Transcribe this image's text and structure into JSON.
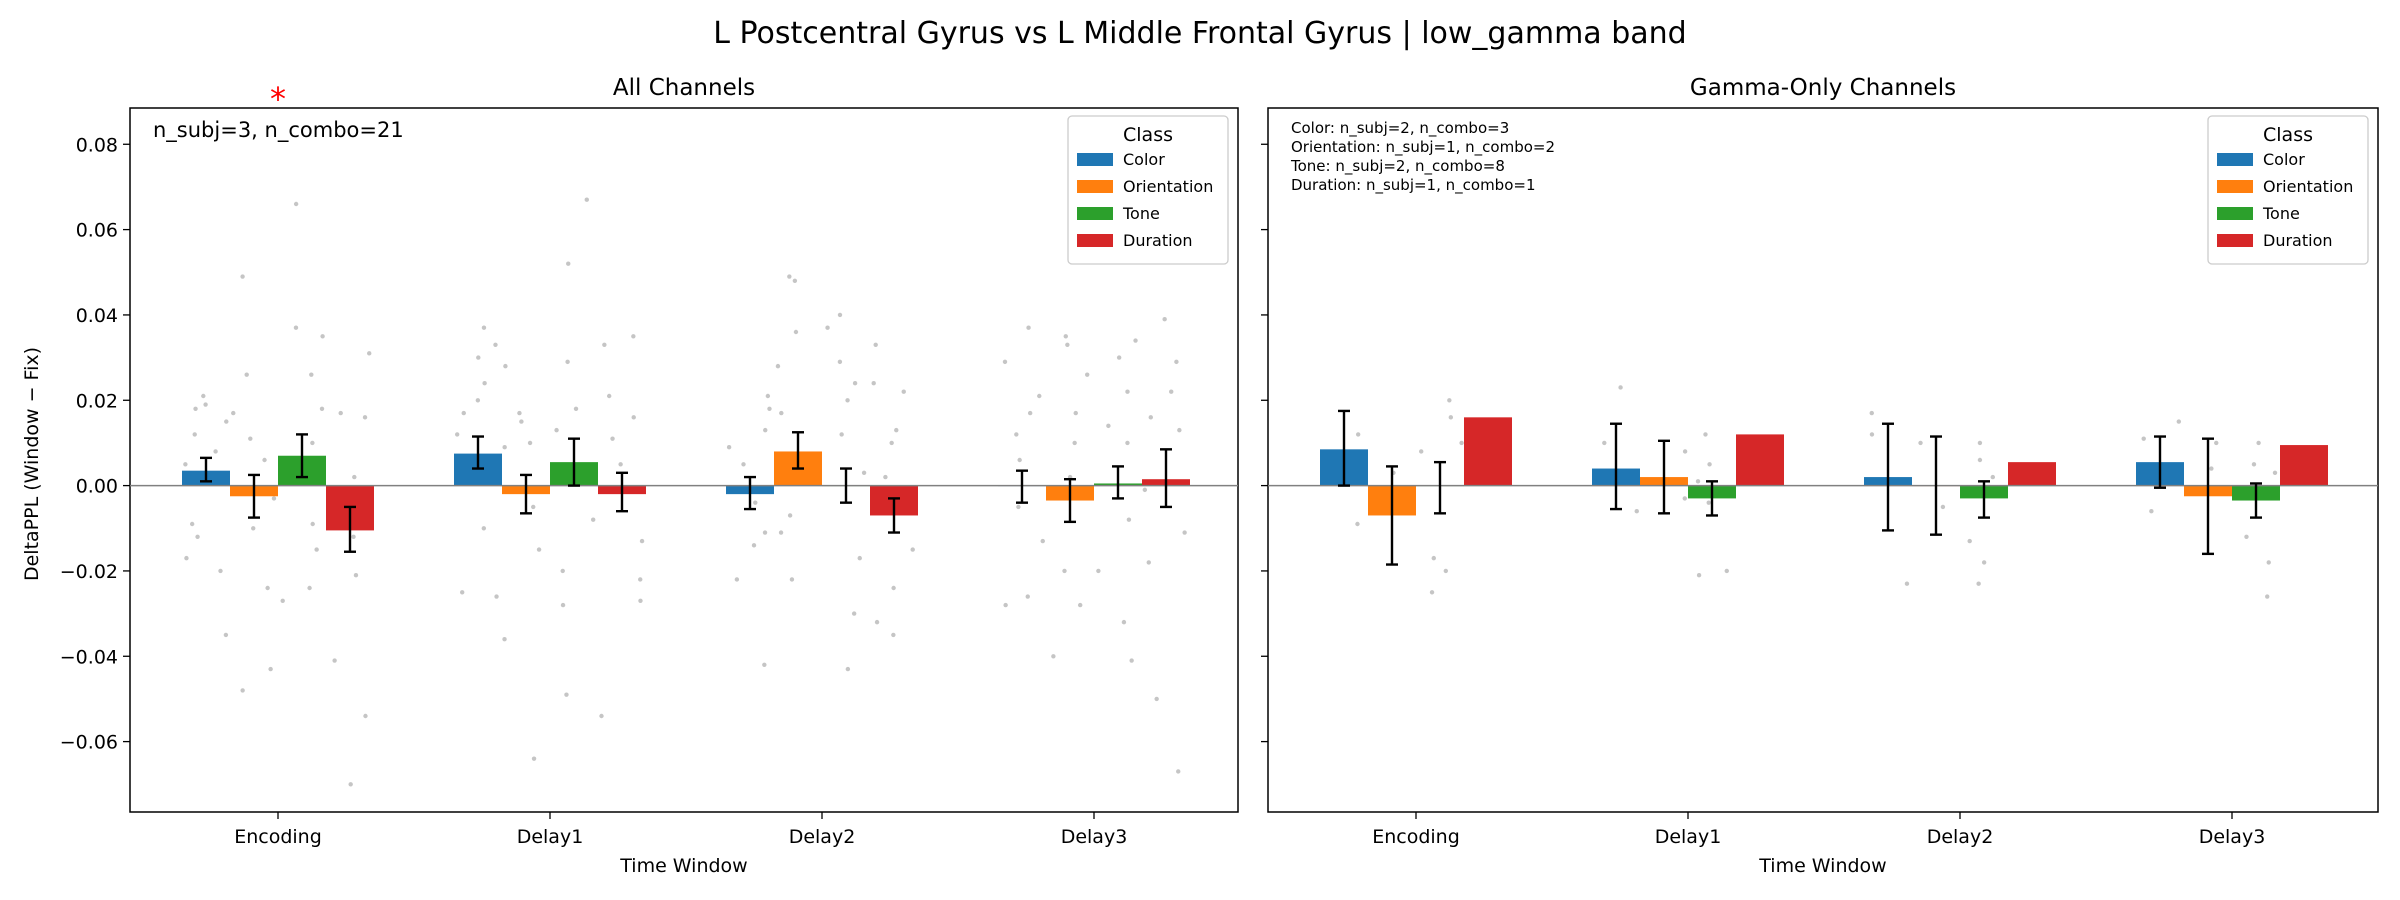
{
  "suptitle": "L Postcentral Gyrus vs L Middle Frontal Gyrus  |  low_gamma band",
  "shared": {
    "ylabel": "DeltaPPL (Window − Fix)",
    "xlabel": "Time Window",
    "ylim": [
      -0.0765,
      0.0885
    ],
    "yticks": [
      -0.06,
      -0.04,
      -0.02,
      0.0,
      0.02,
      0.04,
      0.06,
      0.08
    ],
    "categories": [
      "Encoding",
      "Delay1",
      "Delay2",
      "Delay3"
    ],
    "legend_title": "Class",
    "legend_placement": "top-right",
    "zero_line": true,
    "grid": false
  },
  "colors": {
    "Color": "#1f77b4",
    "Orientation": "#ff7f0e",
    "Tone": "#2ca02c",
    "Duration": "#d62728",
    "points": "#bbbbbb",
    "significance": "#ff0000",
    "zero_line": "#808080"
  },
  "chart_data": [
    {
      "type": "bar",
      "title": "All Channels",
      "annotation": "n_subj=3, n_combo=21",
      "significance_marker": {
        "text": "*",
        "category": "Encoding"
      },
      "series": [
        {
          "name": "Color",
          "values": [
            0.0035,
            0.0075,
            -0.002,
            0.0
          ],
          "errors": [
            [
              0.001,
              0.0065
            ],
            [
              0.004,
              0.0115
            ],
            [
              -0.0055,
              0.002
            ],
            [
              -0.004,
              0.0035
            ]
          ]
        },
        {
          "name": "Orientation",
          "values": [
            -0.0025,
            -0.002,
            0.008,
            -0.0035
          ],
          "errors": [
            [
              -0.0075,
              0.0025
            ],
            [
              -0.0065,
              0.0025
            ],
            [
              0.004,
              0.0125
            ],
            [
              -0.0085,
              0.0015
            ]
          ]
        },
        {
          "name": "Tone",
          "values": [
            0.007,
            0.0055,
            0.0,
            0.0005
          ],
          "errors": [
            [
              0.002,
              0.012
            ],
            [
              0.0,
              0.011
            ],
            [
              -0.004,
              0.004
            ],
            [
              -0.003,
              0.0045
            ]
          ]
        },
        {
          "name": "Duration",
          "values": [
            -0.0105,
            -0.002,
            -0.007,
            0.0015
          ],
          "errors": [
            [
              -0.0155,
              -0.005
            ],
            [
              -0.006,
              0.003
            ],
            [
              -0.011,
              -0.003
            ],
            [
              -0.005,
              0.0085
            ]
          ]
        }
      ],
      "points": [
        [
          [
            0.021,
            0.019,
            0.012,
            0.005,
            -0.009,
            -0.017,
            -0.035,
            0.002,
            0.018,
            -0.012,
            0.008,
            -0.02,
            0.015
          ],
          [
            0.049,
            0.026,
            0.017,
            -0.003,
            -0.024,
            -0.048,
            -0.043,
            0.011,
            -0.01,
            0.006
          ],
          [
            0.066,
            0.037,
            0.026,
            0.01,
            -0.009,
            -0.027,
            0.035,
            -0.015,
            0.018,
            -0.024,
            0.004
          ],
          [
            0.031,
            0.017,
            0.002,
            -0.021,
            -0.041,
            -0.054,
            -0.07,
            0.016,
            -0.012
          ]
        ],
        [
          [
            0.037,
            0.033,
            0.024,
            0.017,
            0.005,
            -0.01,
            -0.025,
            0.03,
            0.012,
            -0.026,
            0.02
          ],
          [
            0.028,
            0.017,
            0.009,
            -0.005,
            -0.036,
            -0.064,
            0.015,
            -0.015,
            0.01
          ],
          [
            0.067,
            0.052,
            0.029,
            0.013,
            -0.008,
            -0.02,
            -0.049,
            0.018,
            -0.028,
            0.004
          ],
          [
            0.035,
            0.033,
            0.021,
            0.016,
            0.005,
            -0.013,
            -0.027,
            -0.054,
            -0.022,
            0.011
          ]
        ],
        [
          [
            0.018,
            0.013,
            0.005,
            -0.004,
            -0.011,
            -0.022,
            -0.042,
            0.021,
            -0.014,
            0.009
          ],
          [
            0.049,
            0.048,
            0.036,
            0.017,
            0.006,
            -0.007,
            -0.022,
            0.028,
            -0.011
          ],
          [
            0.04,
            0.037,
            0.029,
            0.02,
            0.003,
            -0.017,
            -0.043,
            0.012,
            -0.03,
            0.024
          ],
          [
            0.033,
            0.024,
            0.013,
            0.002,
            -0.015,
            -0.032,
            -0.035,
            0.022,
            -0.024,
            0.01
          ]
        ],
        [
          [
            0.037,
            0.029,
            0.017,
            0.006,
            -0.005,
            -0.026,
            -0.028,
            0.021,
            -0.013,
            0.012
          ],
          [
            0.035,
            0.033,
            0.026,
            0.017,
            0.002,
            -0.02,
            -0.04,
            0.01,
            -0.028
          ],
          [
            0.034,
            0.03,
            0.022,
            0.01,
            -0.008,
            -0.02,
            -0.041,
            0.014,
            -0.032
          ],
          [
            0.039,
            0.029,
            0.022,
            0.013,
            -0.001,
            -0.011,
            -0.05,
            -0.067,
            0.016,
            -0.018
          ]
        ]
      ]
    },
    {
      "type": "bar",
      "title": "Gamma-Only Channels",
      "annotation_lines": [
        "Color: n_subj=2, n_combo=3",
        "Orientation: n_subj=1, n_combo=2",
        "Tone: n_subj=2, n_combo=8",
        "Duration: n_subj=1, n_combo=1"
      ],
      "series": [
        {
          "name": "Color",
          "values": [
            0.0085,
            0.004,
            0.002,
            0.0055
          ],
          "errors": [
            [
              0.0,
              0.0175
            ],
            [
              -0.0055,
              0.0145
            ],
            [
              -0.0105,
              0.0145
            ],
            [
              -0.0005,
              0.0115
            ]
          ]
        },
        {
          "name": "Orientation",
          "values": [
            -0.007,
            0.002,
            0.0,
            -0.0025
          ],
          "errors": [
            [
              -0.0185,
              0.0045
            ],
            [
              -0.0065,
              0.0105
            ],
            [
              -0.0115,
              0.0115
            ],
            [
              -0.016,
              0.011
            ]
          ]
        },
        {
          "name": "Tone",
          "values": [
            0.0,
            -0.003,
            -0.003,
            -0.0035
          ],
          "errors": [
            [
              -0.0065,
              0.0055
            ],
            [
              -0.007,
              0.001
            ],
            [
              -0.0075,
              0.001
            ],
            [
              -0.0075,
              0.0005
            ]
          ]
        },
        {
          "name": "Duration",
          "values": [
            0.016,
            0.012,
            0.0055,
            0.0095
          ],
          "errors": null
        }
      ],
      "points": [
        [
          [
            0.012,
            0.005,
            -0.009
          ],
          [
            0.003,
            -0.006
          ],
          [
            0.02,
            0.016,
            0.008,
            -0.017,
            -0.025,
            -0.02,
            0.01
          ],
          []
        ],
        [
          [
            0.023,
            0.01,
            -0.006
          ],
          [
            0.008,
            -0.003
          ],
          [
            0.012,
            0.005,
            -0.02,
            -0.021,
            0.001,
            -0.004
          ],
          []
        ],
        [
          [
            0.017,
            0.012,
            -0.023
          ],
          [
            0.01,
            -0.005
          ],
          [
            0.01,
            0.006,
            -0.018,
            -0.023,
            0.002,
            -0.013
          ],
          []
        ],
        [
          [
            0.015,
            0.011,
            -0.006
          ],
          [
            0.01,
            0.004
          ],
          [
            0.01,
            0.005,
            -0.012,
            -0.018,
            -0.026,
            0.003
          ],
          []
        ]
      ]
    }
  ]
}
